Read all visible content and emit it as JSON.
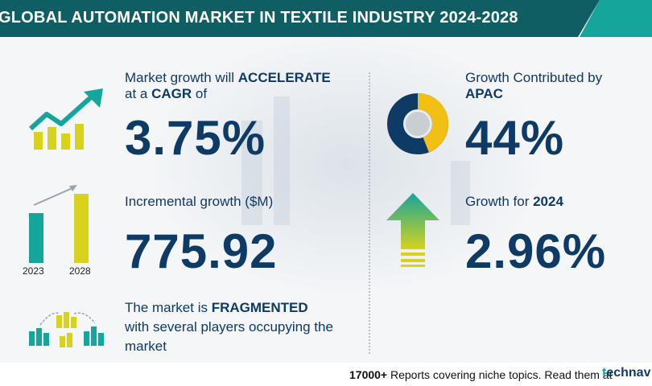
{
  "header": {
    "title": "GLOBAL AUTOMATION MARKET IN TEXTILE INDUSTRY 2024-2028"
  },
  "cagr": {
    "label_line1_pre": "Market growth will ",
    "label_line1_bold": "ACCELERATE",
    "label_line2_pre": "at a ",
    "label_line2_bold": "CAGR",
    "label_line2_post": "  of",
    "value": "3.75%"
  },
  "incremental": {
    "label": "Incremental growth ($M)",
    "value": "775.92",
    "years": [
      "2023",
      "2028"
    ]
  },
  "market": {
    "label_line1_pre": "The market is ",
    "label_line1_bold": "FRAGMENTED",
    "label_line2": "with several players occupying the",
    "label_line3": "market"
  },
  "apac": {
    "label_line1": "Growth Contributed by",
    "label_line2": "APAC",
    "value": "44%",
    "share": 0.44
  },
  "growth_year": {
    "label_pre": "Growth for  ",
    "label_bold": "2024",
    "value": "2.96%"
  },
  "footer": {
    "count": "17000+",
    "text": " Reports covering niche topics. Read them at",
    "logo_t": "t",
    "logo_rest": "echnav"
  },
  "colors": {
    "navy": "#0e3a66",
    "teal": "#16a59a",
    "dark_teal": "#0f5e63",
    "yellow": "#d8d21c"
  }
}
